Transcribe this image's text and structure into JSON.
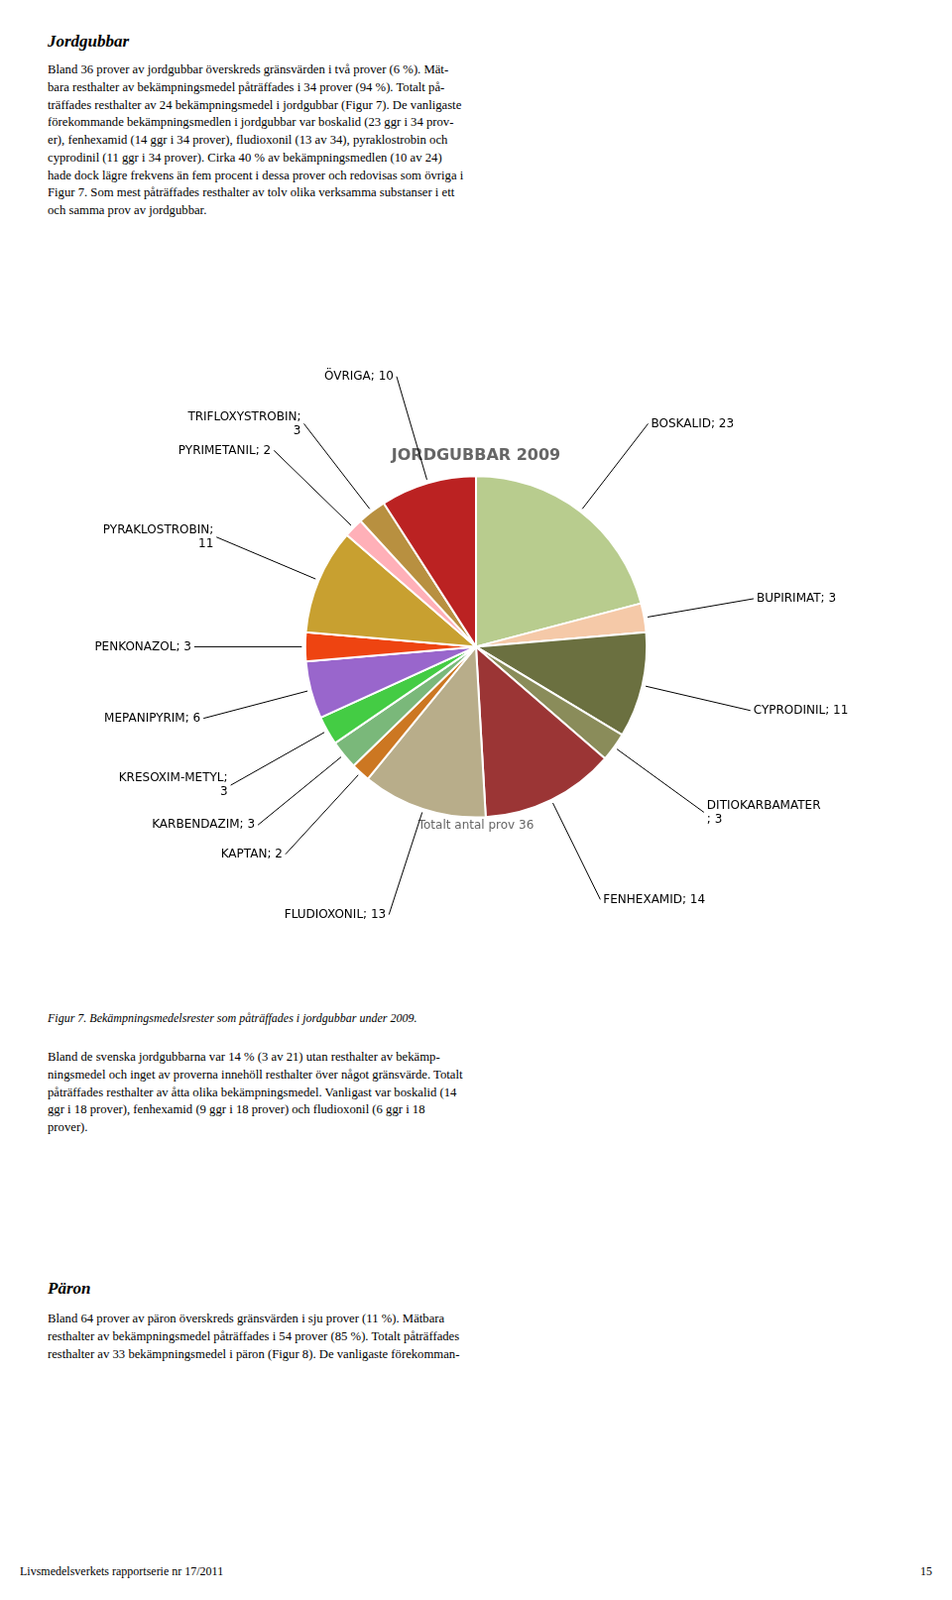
{
  "chart_data": {
    "type": "pie",
    "title": "JORDGUBBAR 2009",
    "subtitle": "Totalt antal prov 36",
    "categories": [
      "BOSKALID; 23",
      "BUPIRIMAT; 3",
      "CYPRODINIL; 11",
      "DITIOKARBAMATER\n; 3",
      "FENHEXAMID; 14",
      "FLUDIOXONIL; 13",
      "KAPTAN; 2",
      "KARBENDAZIM; 3",
      "KRESOXIM-METYL;\n3",
      "MEPANIPYRIM; 6",
      "PENKONAZOL; 3",
      "PYRAKLOSTROBIN;\n11",
      "PYRIMETANIL; 2",
      "TRIFLOXYSTROBIN;\n3",
      "ÖVRIGA; 10"
    ],
    "values": [
      23,
      3,
      11,
      3,
      14,
      13,
      2,
      3,
      3,
      6,
      3,
      11,
      2,
      3,
      10
    ],
    "colors": [
      "#b8cc8e",
      "#f5c9a8",
      "#6b7040",
      "#8a8c5a",
      "#9b3535",
      "#b8ad8a",
      "#cc7722",
      "#7ab87a",
      "#44cc44",
      "#9966cc",
      "#ee4411",
      "#c8a030",
      "#ffb0b8",
      "#b89040",
      "#bb2222"
    ]
  },
  "text_above1": "Jordgubbar",
  "text_above2": "Bland 36 prover av jordgubbar överskreds gränsvärden i två prover (6 %). Mät-\nbara resthalter av bekämpningsmedel påträffades i 34 prover (94 %). Totalt på-\nträffades resthalter av 24 bekämpningsmedel i jordgubbar (Figur 7). De vanligaste\nförekommande bekämpningsmedlen i jordgubbar var boskalid (23 ggr i 34 prov-\ner), fenhexamid (14 ggr i 34 prover), fludioxonil (13 av 34), pyraklostrobin och\ncyprodinil (11 ggr i 34 prover). Cirka 40 % av bekämpningsmedlen (10 av 24)\nhade dock lägre frekvens än fem procent i dessa prover och redovisas som övriga i\nFigur 7. Som mest påträffades resthalter av tolv olika verksamma substanser i ett\noch samma prov av jordgubbar.",
  "fig_caption": "Figur 7. Bekämpningsmedelsrester som påträffades i jordgubbar under 2009.",
  "text_below": "Bland de svenska jordgubbarna var 14 % (3 av 21) utan resthalter av bekämp-\nningsmedel och inget av proverna innehöll resthalter över något gränsvärde. Totalt\npåträffades resthalter av åtta olika bekämpningsmedel. Vanligast var boskalid (14\nggr i 18 prover), fenhexamid (9 ggr i 18 prover) och fludioxonil (6 ggr i 18\nprover).",
  "text_paron_title": "Päron",
  "text_paron": "Bland 64 prover av päron överskreds gränsvärden i sju prover (11 %). Mätbara\nresthalter av bekämpningsmedel påträffades i 54 prover (85 %). Totalt påträffades\nresthalter av 33 bekämpningsmedel i päron (Figur 8). De vanligaste förekomman-",
  "footer_left": "Livsmedelsverkets rapportserie nr 17/2011",
  "footer_right": "15"
}
